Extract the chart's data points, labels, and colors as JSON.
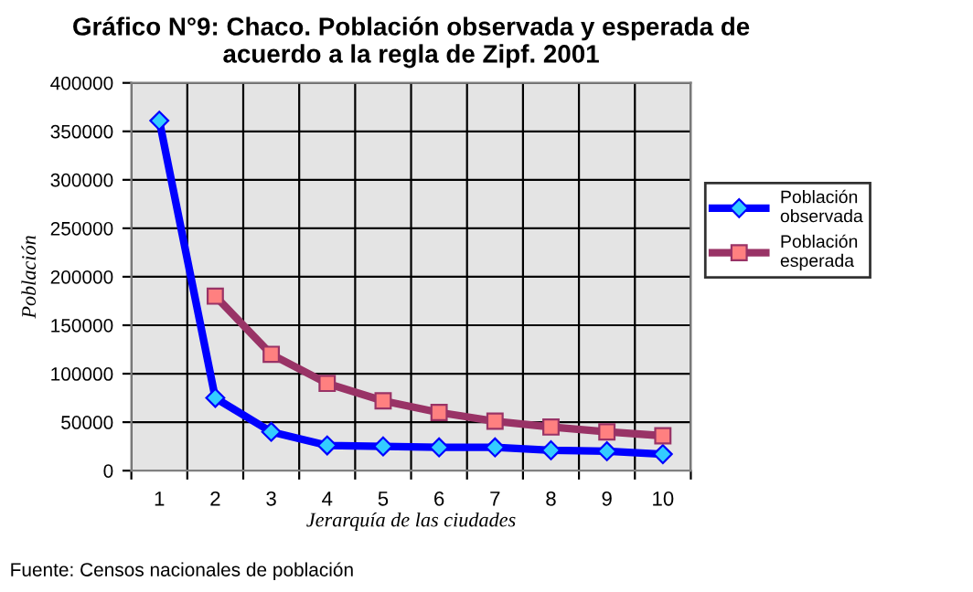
{
  "chart_data": {
    "type": "line",
    "title": "Gráfico N°9: Chaco. Población observada y esperada de\nacuerdo a la regla de Zipf. 2001",
    "xlabel": "Jerarquía de las ciudades",
    "ylabel": "Población",
    "categories": [
      "1",
      "2",
      "3",
      "4",
      "5",
      "6",
      "7",
      "8",
      "9",
      "10"
    ],
    "series": [
      {
        "name": "Población\nobservada",
        "color": "#0000ff",
        "marker": "diamond",
        "values": [
          361000,
          75000,
          40000,
          26000,
          25000,
          24000,
          24000,
          21000,
          20000,
          17000
        ]
      },
      {
        "name": "Población\nesperada",
        "color": "#993366",
        "marker": "square",
        "values": [
          null,
          180000,
          120000,
          90000,
          72000,
          60000,
          51000,
          45000,
          40000,
          36000
        ]
      }
    ],
    "ylim": [
      0,
      400000
    ],
    "yticks": [
      0,
      50000,
      100000,
      150000,
      200000,
      250000,
      300000,
      350000,
      400000
    ],
    "grid": true,
    "legend": "right",
    "annotations": [
      "Fuente: Censos nacionales de población"
    ]
  }
}
